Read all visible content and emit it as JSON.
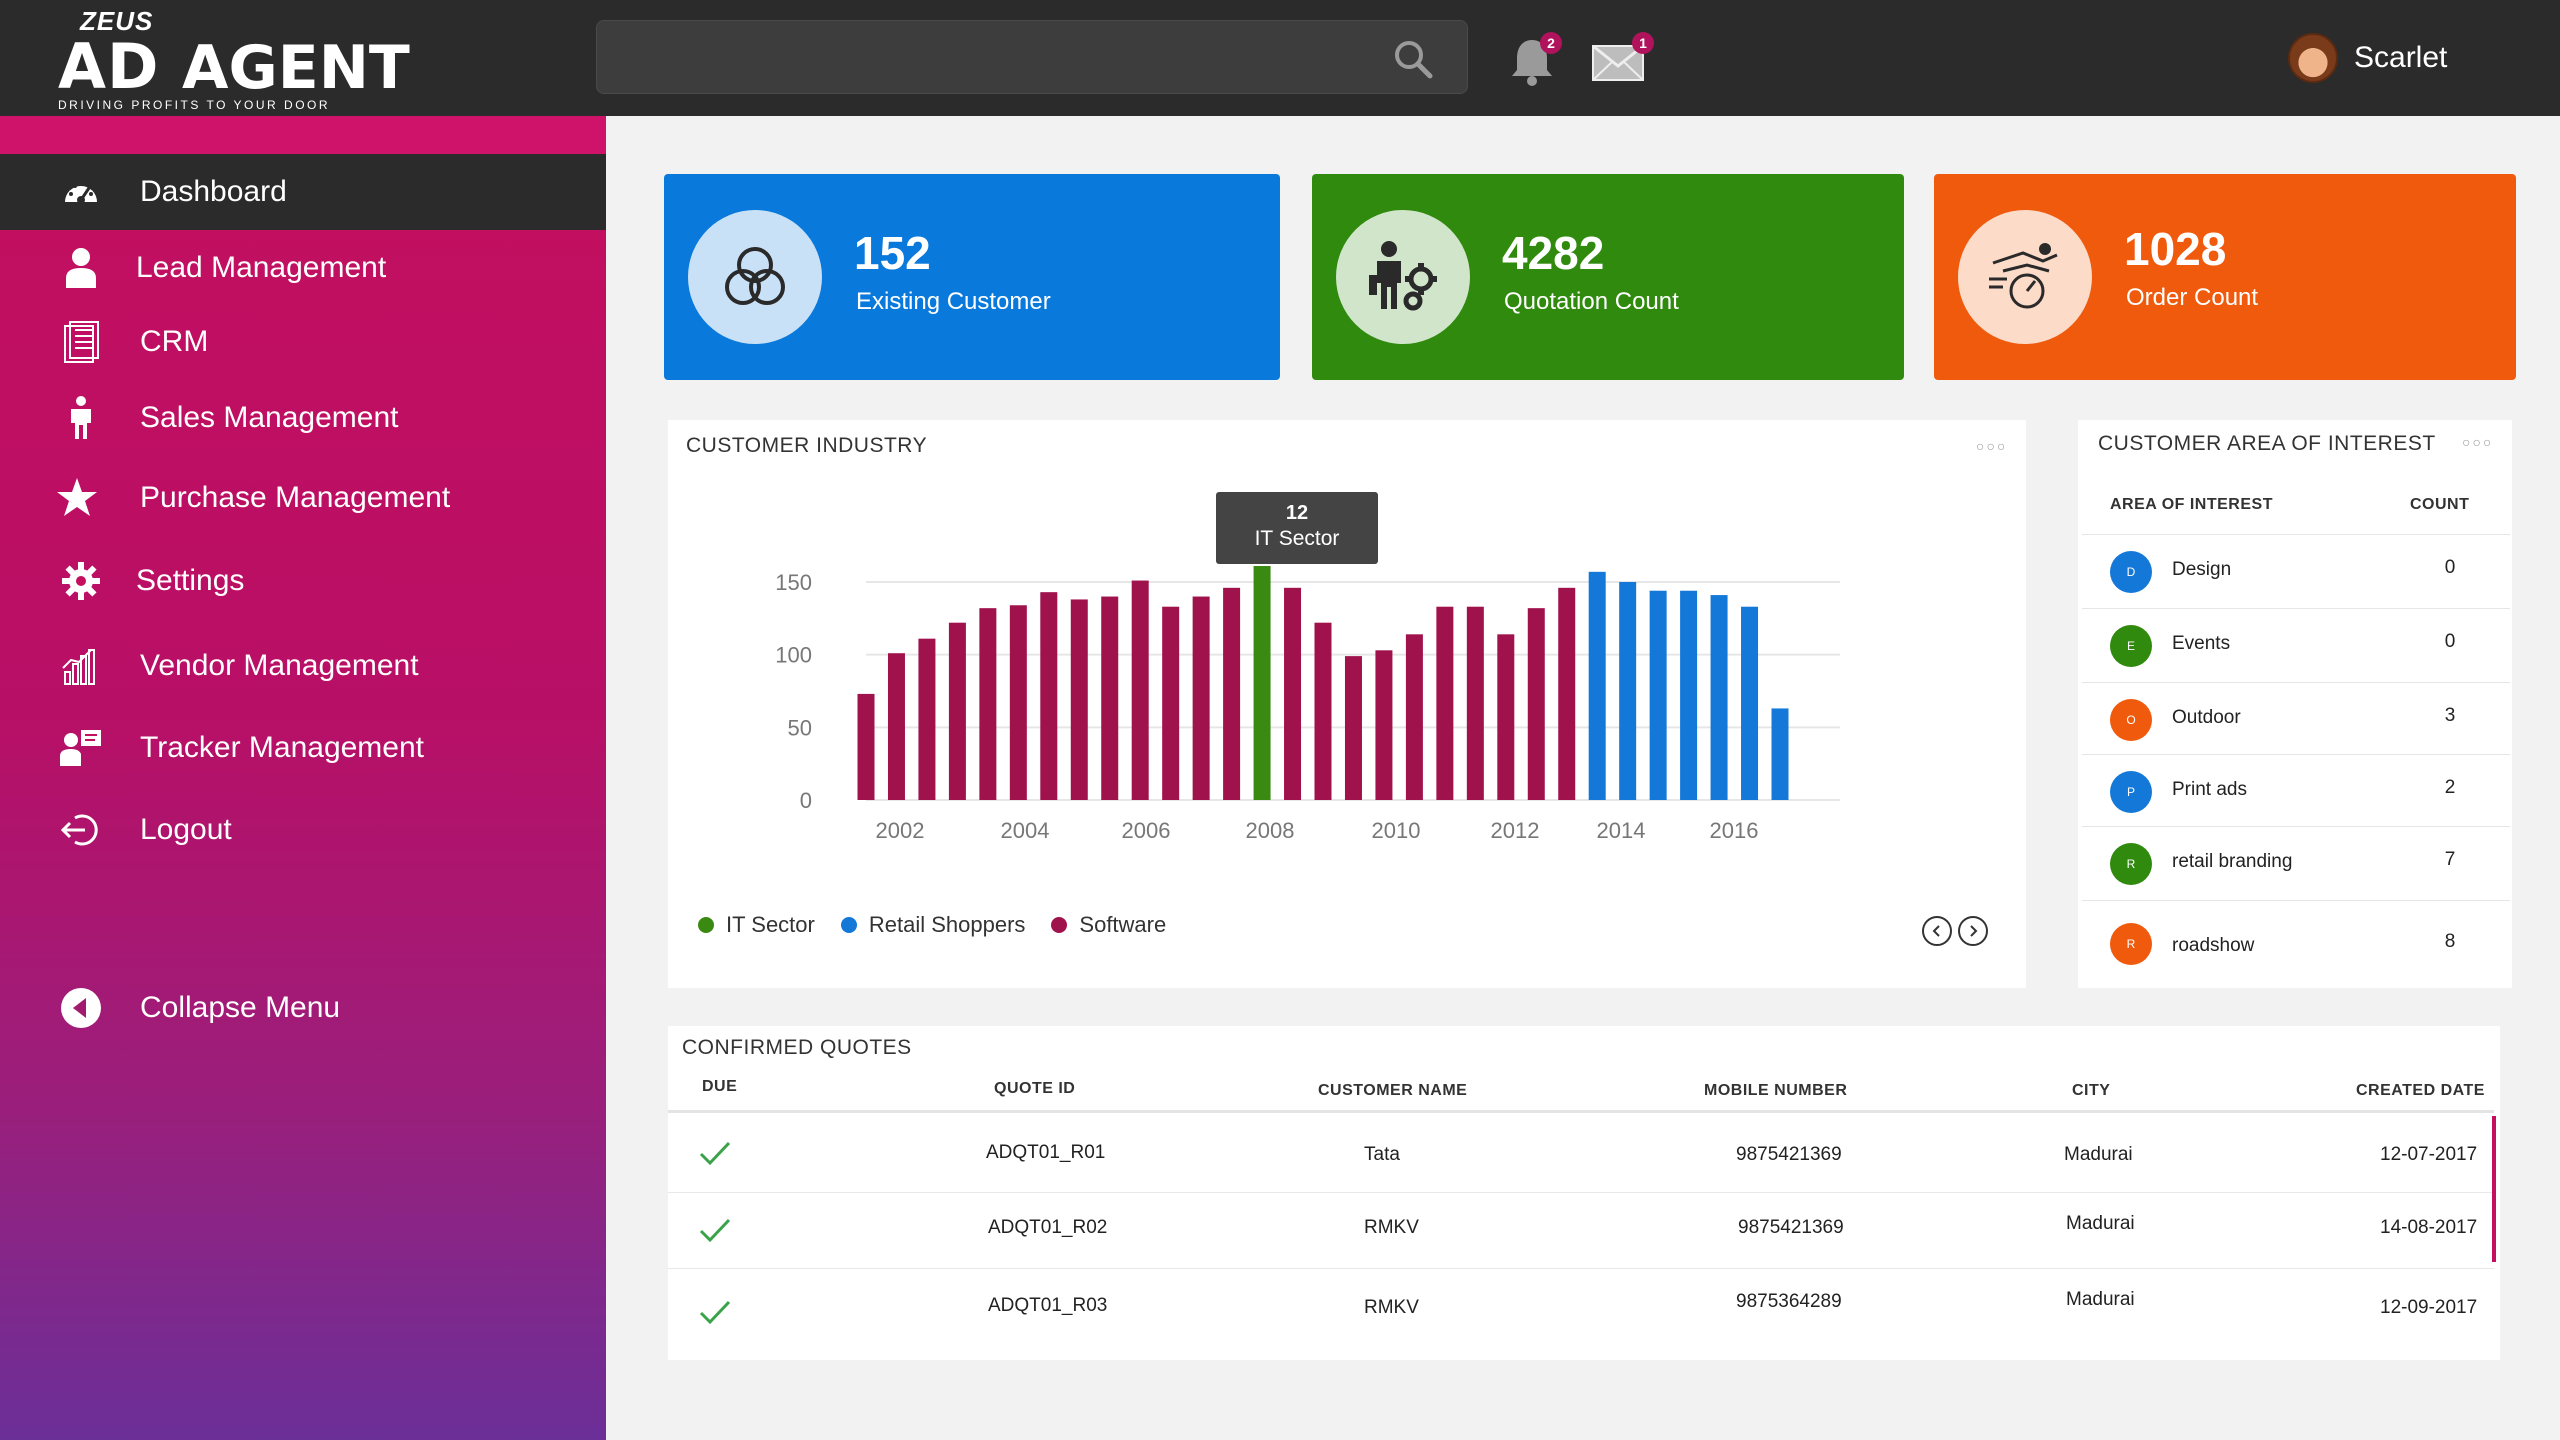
{
  "header": {
    "logo": {
      "top": "ZEUS",
      "brand_a": "AD",
      "brand_b": "AGENT",
      "tagline": "DRIVING PROFITS TO YOUR DOOR"
    },
    "search": {
      "value": "",
      "placeholder": ""
    },
    "notifications_count": "2",
    "messages_count": "1",
    "user_name": "Scarlet"
  },
  "sidebar": {
    "items": [
      {
        "label": "Dashboard",
        "icon": "speedometer-icon"
      },
      {
        "label": "Lead Management",
        "icon": "person-icon"
      },
      {
        "label": "CRM",
        "icon": "document-icon"
      },
      {
        "label": "Sales Management",
        "icon": "salesman-icon"
      },
      {
        "label": "Purchase Management",
        "icon": "star-icon"
      },
      {
        "label": "Settings",
        "icon": "gear-icon"
      },
      {
        "label": "Vendor Management",
        "icon": "bar-chart-icon"
      },
      {
        "label": "Tracker Management",
        "icon": "presenter-icon"
      },
      {
        "label": "Logout",
        "icon": "logout-icon"
      }
    ],
    "collapse_label": "Collapse Menu"
  },
  "stats": [
    {
      "value": "152",
      "label": "Existing Customer",
      "color": "#0a79dc"
    },
    {
      "value": "4282",
      "label": "Quotation Count",
      "color": "#2f8a0e"
    },
    {
      "value": "1028",
      "label": "Order Count",
      "color": "#f05a0c"
    }
  ],
  "industry": {
    "title": "CUSTOMER INDUSTRY",
    "tooltip": {
      "value": "12",
      "label": "IT Sector"
    },
    "legend": [
      {
        "name": "IT Sector",
        "color": "#3a8a12"
      },
      {
        "name": "Retail Shoppers",
        "color": "#1478d8"
      },
      {
        "name": "Software",
        "color": "#a0124c"
      }
    ]
  },
  "chart_data": {
    "type": "bar",
    "title": "CUSTOMER INDUSTRY",
    "ylim": [
      0,
      150
    ],
    "yticks": [
      "0",
      "50",
      "100",
      "150"
    ],
    "xticks": [
      "2002",
      "2004",
      "2006",
      "2008",
      "2010",
      "2012",
      "2014",
      "2016"
    ],
    "grid": true,
    "legend_position": "bottom-left",
    "series": [
      {
        "name": "Software",
        "color": "#a0124c",
        "values": [
          73,
          101,
          111,
          122,
          132,
          134,
          143,
          138,
          140,
          151,
          133,
          140,
          146,
          null,
          146,
          122,
          99,
          103,
          114,
          133,
          133,
          114,
          132,
          146,
          null,
          null,
          null,
          null,
          null,
          null,
          null
        ]
      },
      {
        "name": "IT Sector",
        "color": "#3a8a12",
        "values": [
          null,
          null,
          null,
          null,
          null,
          null,
          null,
          null,
          null,
          null,
          null,
          null,
          null,
          161,
          null,
          null,
          null,
          null,
          null,
          null,
          null,
          null,
          null,
          null,
          null,
          null,
          null,
          null,
          null,
          null,
          null
        ]
      },
      {
        "name": "Retail Shoppers",
        "color": "#1478d8",
        "values": [
          null,
          null,
          null,
          null,
          null,
          null,
          null,
          null,
          null,
          null,
          null,
          null,
          null,
          null,
          null,
          null,
          null,
          null,
          null,
          null,
          null,
          null,
          null,
          null,
          157,
          150,
          144,
          144,
          141,
          133,
          63
        ]
      }
    ]
  },
  "aoi": {
    "title": "CUSTOMER AREA OF INTEREST",
    "col_area": "AREA OF INTEREST",
    "col_count": "COUNT",
    "rows": [
      {
        "initial": "D",
        "name": "Design",
        "count": "0",
        "color": "#1478d8"
      },
      {
        "initial": "E",
        "name": "Events",
        "count": "0",
        "color": "#2f8a0e"
      },
      {
        "initial": "O",
        "name": "Outdoor",
        "count": "3",
        "color": "#f05a0c"
      },
      {
        "initial": "P",
        "name": "Print ads",
        "count": "2",
        "color": "#1478d8"
      },
      {
        "initial": "R",
        "name": "retail branding",
        "count": "7",
        "color": "#2f8a0e"
      },
      {
        "initial": "R",
        "name": "roadshow",
        "count": "8",
        "color": "#f05a0c"
      }
    ]
  },
  "quotes": {
    "title": "CONFIRMED QUOTES",
    "columns": [
      "DUE",
      "QUOTE ID",
      "CUSTOMER NAME",
      "MOBILE NUMBER",
      "CITY",
      "CREATED DATE"
    ],
    "rows": [
      {
        "quote_id": "ADQT01_R01",
        "customer": "Tata",
        "mobile": "9875421369",
        "city": "Madurai",
        "date": "12-07-2017"
      },
      {
        "quote_id": "ADQT01_R02",
        "customer": "RMKV",
        "mobile": "9875421369",
        "city": "Madurai",
        "date": "14-08-2017"
      },
      {
        "quote_id": "ADQT01_R03",
        "customer": "RMKV",
        "mobile": "9875364289",
        "city": "Madurai",
        "date": "12-09-2017"
      }
    ]
  }
}
